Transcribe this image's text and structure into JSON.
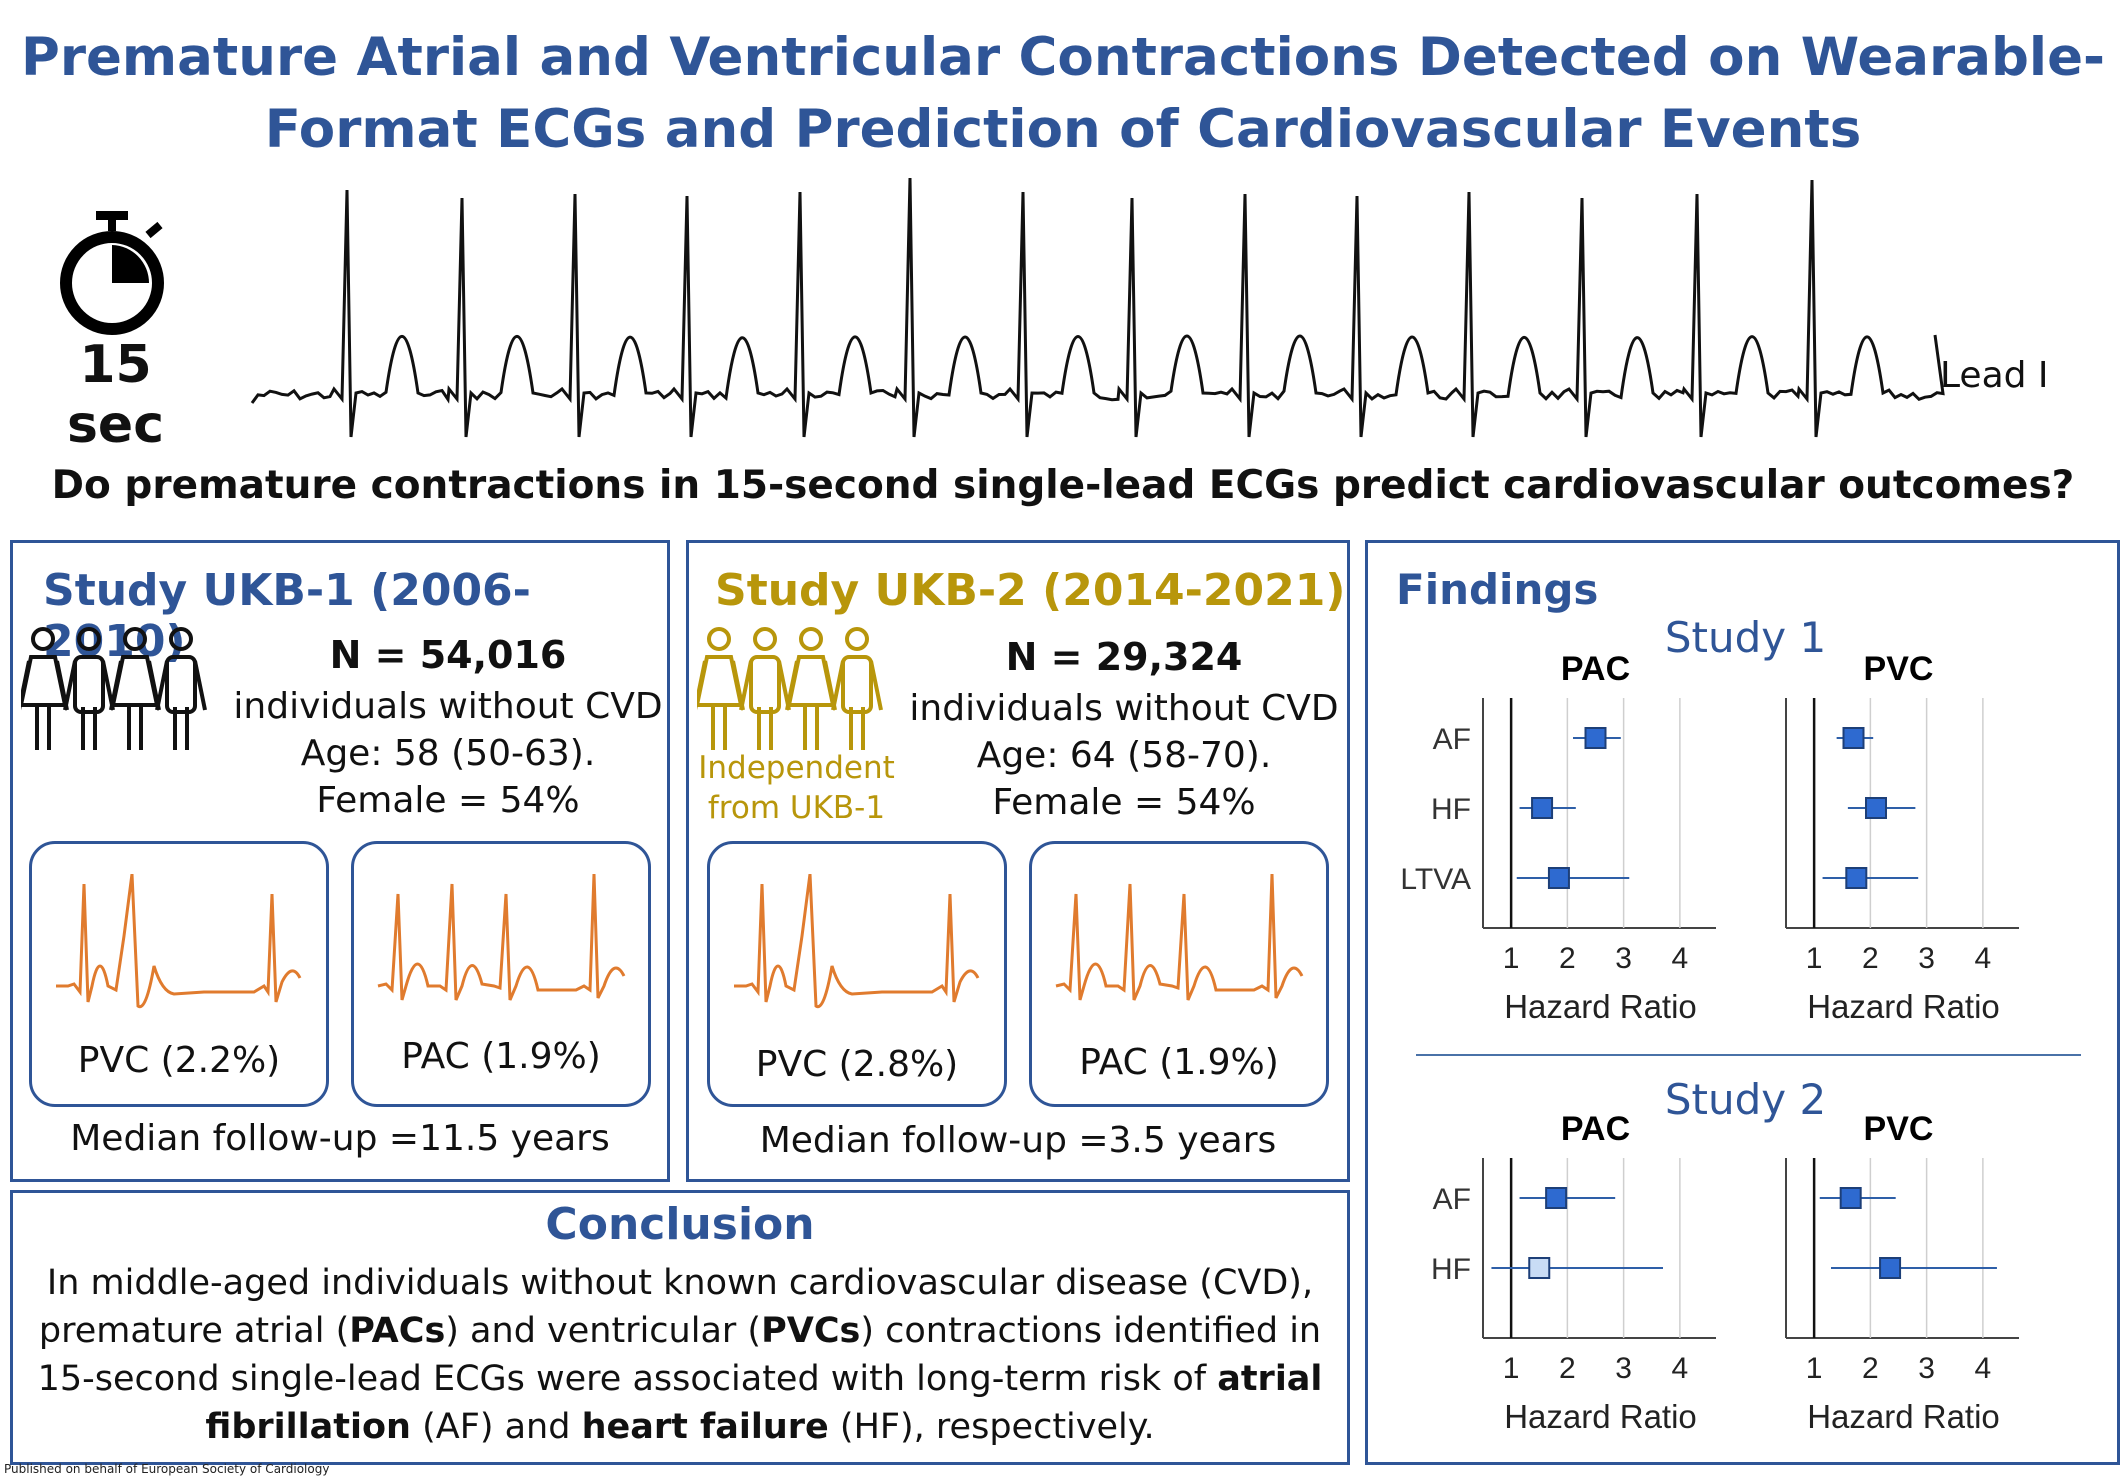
{
  "title_line1": "Premature Atrial and Ventricular Contractions Detected on Wearable-",
  "title_line2": "Format ECGs and Prediction of Cardiovascular Events",
  "duration_label": "15 sec",
  "lead_label": "Lead I",
  "question": "Do premature contractions in 15-second single-lead ECGs predict cardiovascular outcomes?",
  "colors": {
    "brand_blue": "#2f5597",
    "gold": "#b8960b",
    "ecg_orange": "#e07b2e",
    "marker_blue": "#2e6ad0"
  },
  "study1": {
    "title": "Study UKB-1 (2006-2010)",
    "n": "N = 54,016",
    "desc": "individuals without CVD",
    "age": "Age: 58 (50-63).",
    "female": "Female = 54%",
    "pvc_label": "PVC (2.2%)",
    "pac_label": "PAC (1.9%)",
    "followup": "Median follow-up =11.5 years",
    "icon": "people-group-icon"
  },
  "study2": {
    "title": "Study UKB-2 (2014-2021)",
    "n": "N = 29,324",
    "desc": "individuals without CVD",
    "age": "Age: 64 (58-70).",
    "female": "Female = 54%",
    "independent": [
      "Independent",
      "from UKB-1"
    ],
    "pvc_label": "PVC (2.8%)",
    "pac_label": "PAC (1.9%)",
    "followup": "Median follow-up =3.5 years",
    "icon": "people-group-icon"
  },
  "conclusion": {
    "title": "Conclusion",
    "line1": "In middle-aged individuals without known cardiovascular disease (CVD),",
    "line2_a": "premature atrial (",
    "line2_b": "PACs",
    "line2_c": ") and ventricular (",
    "line2_d": "PVCs",
    "line2_e": ") contractions identified in",
    "line3_a": "15-second single-lead ECGs were associated with long-term risk of ",
    "line3_b": "atrial",
    "line4_a": "fibrillation",
    "line4_b": " (AF) and ",
    "line4_c": "heart failure",
    "line4_d": " (HF), respectively."
  },
  "findings_title": "Findings",
  "footer": "Published on behalf of European Society of Cardiology",
  "chart_data": [
    {
      "type": "scatter",
      "study": "Study 1",
      "title": "PAC",
      "xlabel": "Hazard Ratio",
      "xticks": [
        1,
        2,
        3,
        4
      ],
      "xlim": [
        0.5,
        4.5
      ],
      "grid": "vertical",
      "categories": [
        "AF",
        "HF",
        "LTVA"
      ],
      "points": [
        {
          "label": "AF",
          "hr": 2.5,
          "lo": 2.1,
          "hi": 2.95
        },
        {
          "label": "HF",
          "hr": 1.55,
          "lo": 1.15,
          "hi": 2.15
        },
        {
          "label": "LTVA",
          "hr": 1.85,
          "lo": 1.1,
          "hi": 3.1
        }
      ]
    },
    {
      "type": "scatter",
      "study": "Study 1",
      "title": "PVC",
      "xlabel": "Hazard Ratio",
      "xticks": [
        1,
        2,
        3,
        4
      ],
      "xlim": [
        0.5,
        4.5
      ],
      "grid": "vertical",
      "categories": [
        "AF",
        "HF",
        "LTVA"
      ],
      "points": [
        {
          "label": "AF",
          "hr": 1.7,
          "lo": 1.4,
          "hi": 2.05
        },
        {
          "label": "HF",
          "hr": 2.1,
          "lo": 1.6,
          "hi": 2.8
        },
        {
          "label": "LTVA",
          "hr": 1.75,
          "lo": 1.15,
          "hi": 2.85
        }
      ]
    },
    {
      "type": "scatter",
      "study": "Study 2",
      "title": "PAC",
      "xlabel": "Hazard Ratio",
      "xticks": [
        1,
        2,
        3,
        4
      ],
      "xlim": [
        0.5,
        4.5
      ],
      "grid": "vertical",
      "categories": [
        "AF",
        "HF"
      ],
      "points": [
        {
          "label": "AF",
          "hr": 1.8,
          "lo": 1.15,
          "hi": 2.85,
          "sig": true
        },
        {
          "label": "HF",
          "hr": 1.5,
          "lo": 0.65,
          "hi": 3.7,
          "sig": false
        }
      ]
    },
    {
      "type": "scatter",
      "study": "Study 2",
      "title": "PVC",
      "xlabel": "Hazard Ratio",
      "xticks": [
        1,
        2,
        3,
        4
      ],
      "xlim": [
        0.5,
        4.5
      ],
      "grid": "vertical",
      "categories": [
        "AF",
        "HF"
      ],
      "points": [
        {
          "label": "AF",
          "hr": 1.65,
          "lo": 1.1,
          "hi": 2.45,
          "sig": true
        },
        {
          "label": "HF",
          "hr": 2.35,
          "lo": 1.3,
          "hi": 4.25,
          "sig": true
        }
      ]
    }
  ]
}
